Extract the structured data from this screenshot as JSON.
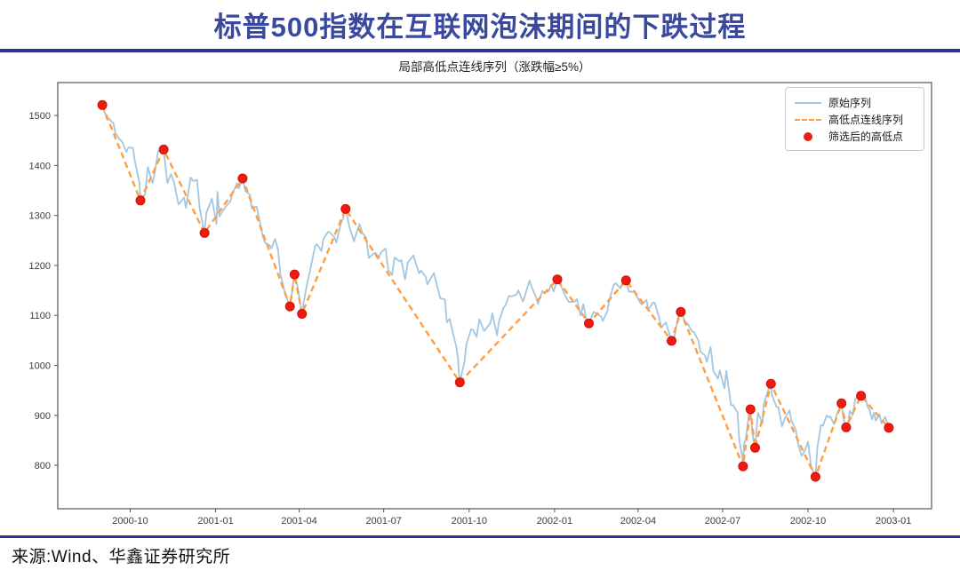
{
  "page": {
    "title": "标普500指数在互联网泡沫期间的下跌过程",
    "source": "来源:Wind、华鑫证券研究所"
  },
  "colors": {
    "accent_rule": "#2e3192",
    "title_text": "#3a489e",
    "raw_series": "#a3c7e0",
    "zigzag_series": "#ff9e42",
    "pivot_points": "#ee1b10",
    "axis": "#555555",
    "tick_label": "#3c3c3c"
  },
  "chart_data": {
    "type": "line",
    "title": "局部高低点连线序列（涨跌幅≥5%）",
    "grid": false,
    "legend_position": "top-right",
    "xlabel": "",
    "ylabel": "",
    "x_ticks": [
      "2000-10",
      "2001-01",
      "2001-04",
      "2001-07",
      "2001-10",
      "2002-01",
      "2002-04",
      "2002-07",
      "2002-10",
      "2003-01"
    ],
    "y_ticks": [
      800,
      900,
      1000,
      1100,
      1200,
      1300,
      1400,
      1500
    ],
    "xlim": [
      "2000-07-15",
      "2003-02-11"
    ],
    "ylim": [
      713,
      1566
    ],
    "legend": [
      {
        "label": "原始序列",
        "marker": "line-solid",
        "color_key": "raw_series"
      },
      {
        "label": "高低点连线序列",
        "marker": "line-dashed",
        "color_key": "zigzag_series"
      },
      {
        "label": "筛选后的高低点",
        "marker": "dot",
        "color_key": "pivot_points"
      }
    ],
    "raw_series": {
      "name": "原始序列",
      "points": [
        [
          "2000-09-01",
          1521
        ],
        [
          "2000-09-06",
          1492
        ],
        [
          "2000-09-08",
          1494
        ],
        [
          "2000-09-13",
          1484
        ],
        [
          "2000-09-15",
          1465
        ],
        [
          "2000-09-20",
          1451
        ],
        [
          "2000-09-22",
          1449
        ],
        [
          "2000-09-27",
          1427
        ],
        [
          "2000-09-29",
          1436
        ],
        [
          "2000-10-04",
          1435
        ],
        [
          "2000-10-06",
          1409
        ],
        [
          "2000-10-11",
          1365
        ],
        [
          "2000-10-12",
          1330
        ],
        [
          "2000-10-17",
          1342
        ],
        [
          "2000-10-20",
          1397
        ],
        [
          "2000-10-25",
          1365
        ],
        [
          "2000-10-27",
          1380
        ],
        [
          "2000-10-31",
          1429
        ],
        [
          "2000-11-03",
          1427
        ],
        [
          "2000-11-06",
          1432
        ],
        [
          "2000-11-10",
          1365
        ],
        [
          "2000-11-14",
          1383
        ],
        [
          "2000-11-17",
          1368
        ],
        [
          "2000-11-22",
          1322
        ],
        [
          "2000-11-28",
          1336
        ],
        [
          "2000-11-30",
          1315
        ],
        [
          "2000-12-05",
          1376
        ],
        [
          "2000-12-08",
          1369
        ],
        [
          "2000-12-12",
          1371
        ],
        [
          "2000-12-15",
          1312
        ],
        [
          "2000-12-20",
          1265
        ],
        [
          "2000-12-22",
          1305
        ],
        [
          "2000-12-28",
          1334
        ],
        [
          "2001-01-02",
          1283
        ],
        [
          "2001-01-03",
          1347
        ],
        [
          "2001-01-05",
          1298
        ],
        [
          "2001-01-10",
          1313
        ],
        [
          "2001-01-12",
          1318
        ],
        [
          "2001-01-17",
          1329
        ],
        [
          "2001-01-19",
          1343
        ],
        [
          "2001-01-24",
          1364
        ],
        [
          "2001-01-26",
          1354
        ],
        [
          "2001-01-30",
          1374
        ],
        [
          "2001-02-02",
          1349
        ],
        [
          "2001-02-07",
          1341
        ],
        [
          "2001-02-09",
          1314
        ],
        [
          "2001-02-14",
          1318
        ],
        [
          "2001-02-16",
          1302
        ],
        [
          "2001-02-21",
          1256
        ],
        [
          "2001-02-23",
          1246
        ],
        [
          "2001-02-28",
          1240
        ],
        [
          "2001-03-02",
          1234
        ],
        [
          "2001-03-06",
          1253
        ],
        [
          "2001-03-09",
          1233
        ],
        [
          "2001-03-12",
          1180
        ],
        [
          "2001-03-14",
          1166
        ],
        [
          "2001-03-16",
          1150
        ],
        [
          "2001-03-21",
          1122
        ],
        [
          "2001-03-22",
          1118
        ],
        [
          "2001-03-27",
          1182
        ],
        [
          "2001-03-30",
          1160
        ],
        [
          "2001-04-04",
          1103
        ],
        [
          "2001-04-06",
          1128
        ],
        [
          "2001-04-10",
          1168
        ],
        [
          "2001-04-12",
          1183
        ],
        [
          "2001-04-18",
          1238
        ],
        [
          "2001-04-20",
          1243
        ],
        [
          "2001-04-25",
          1229
        ],
        [
          "2001-04-27",
          1253
        ],
        [
          "2001-05-02",
          1267
        ],
        [
          "2001-05-04",
          1266
        ],
        [
          "2001-05-09",
          1256
        ],
        [
          "2001-05-11",
          1246
        ],
        [
          "2001-05-16",
          1285
        ],
        [
          "2001-05-18",
          1292
        ],
        [
          "2001-05-21",
          1313
        ],
        [
          "2001-05-25",
          1278
        ],
        [
          "2001-05-30",
          1248
        ],
        [
          "2001-06-01",
          1261
        ],
        [
          "2001-06-05",
          1283
        ],
        [
          "2001-06-08",
          1265
        ],
        [
          "2001-06-12",
          1256
        ],
        [
          "2001-06-15",
          1215
        ],
        [
          "2001-06-20",
          1224
        ],
        [
          "2001-06-22",
          1225
        ],
        [
          "2001-06-26",
          1216
        ],
        [
          "2001-06-28",
          1226
        ],
        [
          "2001-07-03",
          1234
        ],
        [
          "2001-07-06",
          1190
        ],
        [
          "2001-07-10",
          1181
        ],
        [
          "2001-07-12",
          1208
        ],
        [
          "2001-07-13",
          1216
        ],
        [
          "2001-07-18",
          1208
        ],
        [
          "2001-07-20",
          1211
        ],
        [
          "2001-07-24",
          1172
        ],
        [
          "2001-07-27",
          1206
        ],
        [
          "2001-08-02",
          1220
        ],
        [
          "2001-08-08",
          1184
        ],
        [
          "2001-08-10",
          1190
        ],
        [
          "2001-08-15",
          1178
        ],
        [
          "2001-08-17",
          1162
        ],
        [
          "2001-08-24",
          1185
        ],
        [
          "2001-08-29",
          1148
        ],
        [
          "2001-08-31",
          1134
        ],
        [
          "2001-09-05",
          1132
        ],
        [
          "2001-09-07",
          1086
        ],
        [
          "2001-09-10",
          1093
        ],
        [
          "2001-09-17",
          1039
        ],
        [
          "2001-09-19",
          1016
        ],
        [
          "2001-09-20",
          984
        ],
        [
          "2001-09-21",
          966
        ],
        [
          "2001-09-26",
          1007
        ],
        [
          "2001-09-28",
          1041
        ],
        [
          "2001-10-03",
          1072
        ],
        [
          "2001-10-05",
          1071
        ],
        [
          "2001-10-09",
          1057
        ],
        [
          "2001-10-12",
          1092
        ],
        [
          "2001-10-17",
          1069
        ],
        [
          "2001-10-19",
          1073
        ],
        [
          "2001-10-24",
          1085
        ],
        [
          "2001-10-26",
          1104
        ],
        [
          "2001-10-29",
          1078
        ],
        [
          "2001-10-31",
          1060
        ],
        [
          "2001-11-02",
          1087
        ],
        [
          "2001-11-07",
          1115
        ],
        [
          "2001-11-09",
          1120
        ],
        [
          "2001-11-13",
          1139
        ],
        [
          "2001-11-16",
          1138
        ],
        [
          "2001-11-21",
          1142
        ],
        [
          "2001-11-23",
          1150
        ],
        [
          "2001-11-28",
          1128
        ],
        [
          "2001-11-30",
          1139
        ],
        [
          "2001-12-05",
          1170
        ],
        [
          "2001-12-07",
          1158
        ],
        [
          "2001-12-12",
          1137
        ],
        [
          "2001-12-14",
          1123
        ],
        [
          "2001-12-19",
          1149
        ],
        [
          "2001-12-21",
          1145
        ],
        [
          "2001-12-26",
          1149
        ],
        [
          "2001-12-28",
          1161
        ],
        [
          "2001-12-31",
          1148
        ],
        [
          "2002-01-04",
          1172
        ],
        [
          "2002-01-09",
          1155
        ],
        [
          "2002-01-11",
          1146
        ],
        [
          "2002-01-16",
          1127
        ],
        [
          "2002-01-18",
          1127
        ],
        [
          "2002-01-23",
          1128
        ],
        [
          "2002-01-25",
          1133
        ],
        [
          "2002-01-29",
          1100
        ],
        [
          "2002-02-01",
          1122
        ],
        [
          "2002-02-04",
          1094
        ],
        [
          "2002-02-07",
          1084
        ],
        [
          "2002-02-12",
          1107
        ],
        [
          "2002-02-15",
          1104
        ],
        [
          "2002-02-20",
          1098
        ],
        [
          "2002-02-22",
          1089
        ],
        [
          "2002-02-27",
          1109
        ],
        [
          "2002-03-01",
          1131
        ],
        [
          "2002-03-06",
          1162
        ],
        [
          "2002-03-08",
          1164
        ],
        [
          "2002-03-13",
          1154
        ],
        [
          "2002-03-15",
          1166
        ],
        [
          "2002-03-19",
          1170
        ],
        [
          "2002-03-22",
          1148
        ],
        [
          "2002-03-26",
          1147
        ],
        [
          "2002-03-28",
          1147
        ],
        [
          "2002-04-03",
          1126
        ],
        [
          "2002-04-05",
          1122
        ],
        [
          "2002-04-10",
          1131
        ],
        [
          "2002-04-12",
          1111
        ],
        [
          "2002-04-17",
          1126
        ],
        [
          "2002-04-19",
          1125
        ],
        [
          "2002-04-24",
          1093
        ],
        [
          "2002-04-26",
          1076
        ],
        [
          "2002-05-01",
          1086
        ],
        [
          "2002-05-03",
          1073
        ],
        [
          "2002-05-07",
          1049
        ],
        [
          "2002-05-10",
          1055
        ],
        [
          "2002-05-14",
          1097
        ],
        [
          "2002-05-17",
          1107
        ],
        [
          "2002-05-22",
          1086
        ],
        [
          "2002-05-24",
          1084
        ],
        [
          "2002-05-29",
          1068
        ],
        [
          "2002-05-31",
          1067
        ],
        [
          "2002-06-05",
          1049
        ],
        [
          "2002-06-07",
          1027
        ],
        [
          "2002-06-12",
          1020
        ],
        [
          "2002-06-14",
          1007
        ],
        [
          "2002-06-18",
          1037
        ],
        [
          "2002-06-21",
          989
        ],
        [
          "2002-06-26",
          973
        ],
        [
          "2002-06-28",
          990
        ],
        [
          "2002-07-03",
          954
        ],
        [
          "2002-07-05",
          989
        ],
        [
          "2002-07-10",
          920
        ],
        [
          "2002-07-12",
          921
        ],
        [
          "2002-07-17",
          906
        ],
        [
          "2002-07-19",
          848
        ],
        [
          "2002-07-22",
          820
        ],
        [
          "2002-07-23",
          798
        ],
        [
          "2002-07-24",
          843
        ],
        [
          "2002-07-26",
          853
        ],
        [
          "2002-07-29",
          898
        ],
        [
          "2002-07-31",
          912
        ],
        [
          "2002-08-02",
          864
        ],
        [
          "2002-08-05",
          835
        ],
        [
          "2002-08-08",
          905
        ],
        [
          "2002-08-13",
          884
        ],
        [
          "2002-08-14",
          920
        ],
        [
          "2002-08-19",
          950
        ],
        [
          "2002-08-22",
          963
        ],
        [
          "2002-08-23",
          941
        ],
        [
          "2002-08-28",
          917
        ],
        [
          "2002-08-30",
          916
        ],
        [
          "2002-09-03",
          878
        ],
        [
          "2002-09-06",
          894
        ],
        [
          "2002-09-11",
          910
        ],
        [
          "2002-09-13",
          890
        ],
        [
          "2002-09-18",
          869
        ],
        [
          "2002-09-20",
          845
        ],
        [
          "2002-09-24",
          819
        ],
        [
          "2002-09-27",
          827
        ],
        [
          "2002-10-01",
          847
        ],
        [
          "2002-10-04",
          800
        ],
        [
          "2002-10-07",
          785
        ],
        [
          "2002-10-09",
          777
        ],
        [
          "2002-10-11",
          835
        ],
        [
          "2002-10-15",
          881
        ],
        [
          "2002-10-17",
          879
        ],
        [
          "2002-10-21",
          900
        ],
        [
          "2002-10-23",
          896
        ],
        [
          "2002-10-25",
          898
        ],
        [
          "2002-10-29",
          882
        ],
        [
          "2002-11-01",
          901
        ],
        [
          "2002-11-06",
          924
        ],
        [
          "2002-11-08",
          894
        ],
        [
          "2002-11-11",
          876
        ],
        [
          "2002-11-13",
          883
        ],
        [
          "2002-11-15",
          909
        ],
        [
          "2002-11-18",
          900
        ],
        [
          "2002-11-21",
          933
        ],
        [
          "2002-11-27",
          939
        ],
        [
          "2002-12-02",
          935
        ],
        [
          "2002-12-04",
          917
        ],
        [
          "2002-12-06",
          912
        ],
        [
          "2002-12-09",
          892
        ],
        [
          "2002-12-11",
          905
        ],
        [
          "2002-12-13",
          889
        ],
        [
          "2002-12-17",
          902
        ],
        [
          "2002-12-19",
          884
        ],
        [
          "2002-12-23",
          897
        ],
        [
          "2002-12-27",
          875
        ],
        [
          "2002-12-31",
          880
        ]
      ]
    },
    "zigzag_series": {
      "name": "高低点连线序列",
      "source": "pivot_points"
    },
    "pivot_points": {
      "name": "筛选后的高低点",
      "points": [
        [
          "2000-09-01",
          1521
        ],
        [
          "2000-10-12",
          1330
        ],
        [
          "2000-11-06",
          1432
        ],
        [
          "2000-12-20",
          1265
        ],
        [
          "2001-01-30",
          1374
        ],
        [
          "2001-03-22",
          1118
        ],
        [
          "2001-03-27",
          1182
        ],
        [
          "2001-04-04",
          1103
        ],
        [
          "2001-05-21",
          1313
        ],
        [
          "2001-09-21",
          966
        ],
        [
          "2002-01-04",
          1172
        ],
        [
          "2002-02-07",
          1084
        ],
        [
          "2002-03-19",
          1170
        ],
        [
          "2002-05-07",
          1049
        ],
        [
          "2002-05-17",
          1107
        ],
        [
          "2002-07-23",
          798
        ],
        [
          "2002-07-31",
          912
        ],
        [
          "2002-08-05",
          835
        ],
        [
          "2002-08-22",
          963
        ],
        [
          "2002-10-09",
          777
        ],
        [
          "2002-11-06",
          924
        ],
        [
          "2002-11-11",
          876
        ],
        [
          "2002-11-27",
          939
        ],
        [
          "2002-12-27",
          875
        ]
      ]
    }
  }
}
